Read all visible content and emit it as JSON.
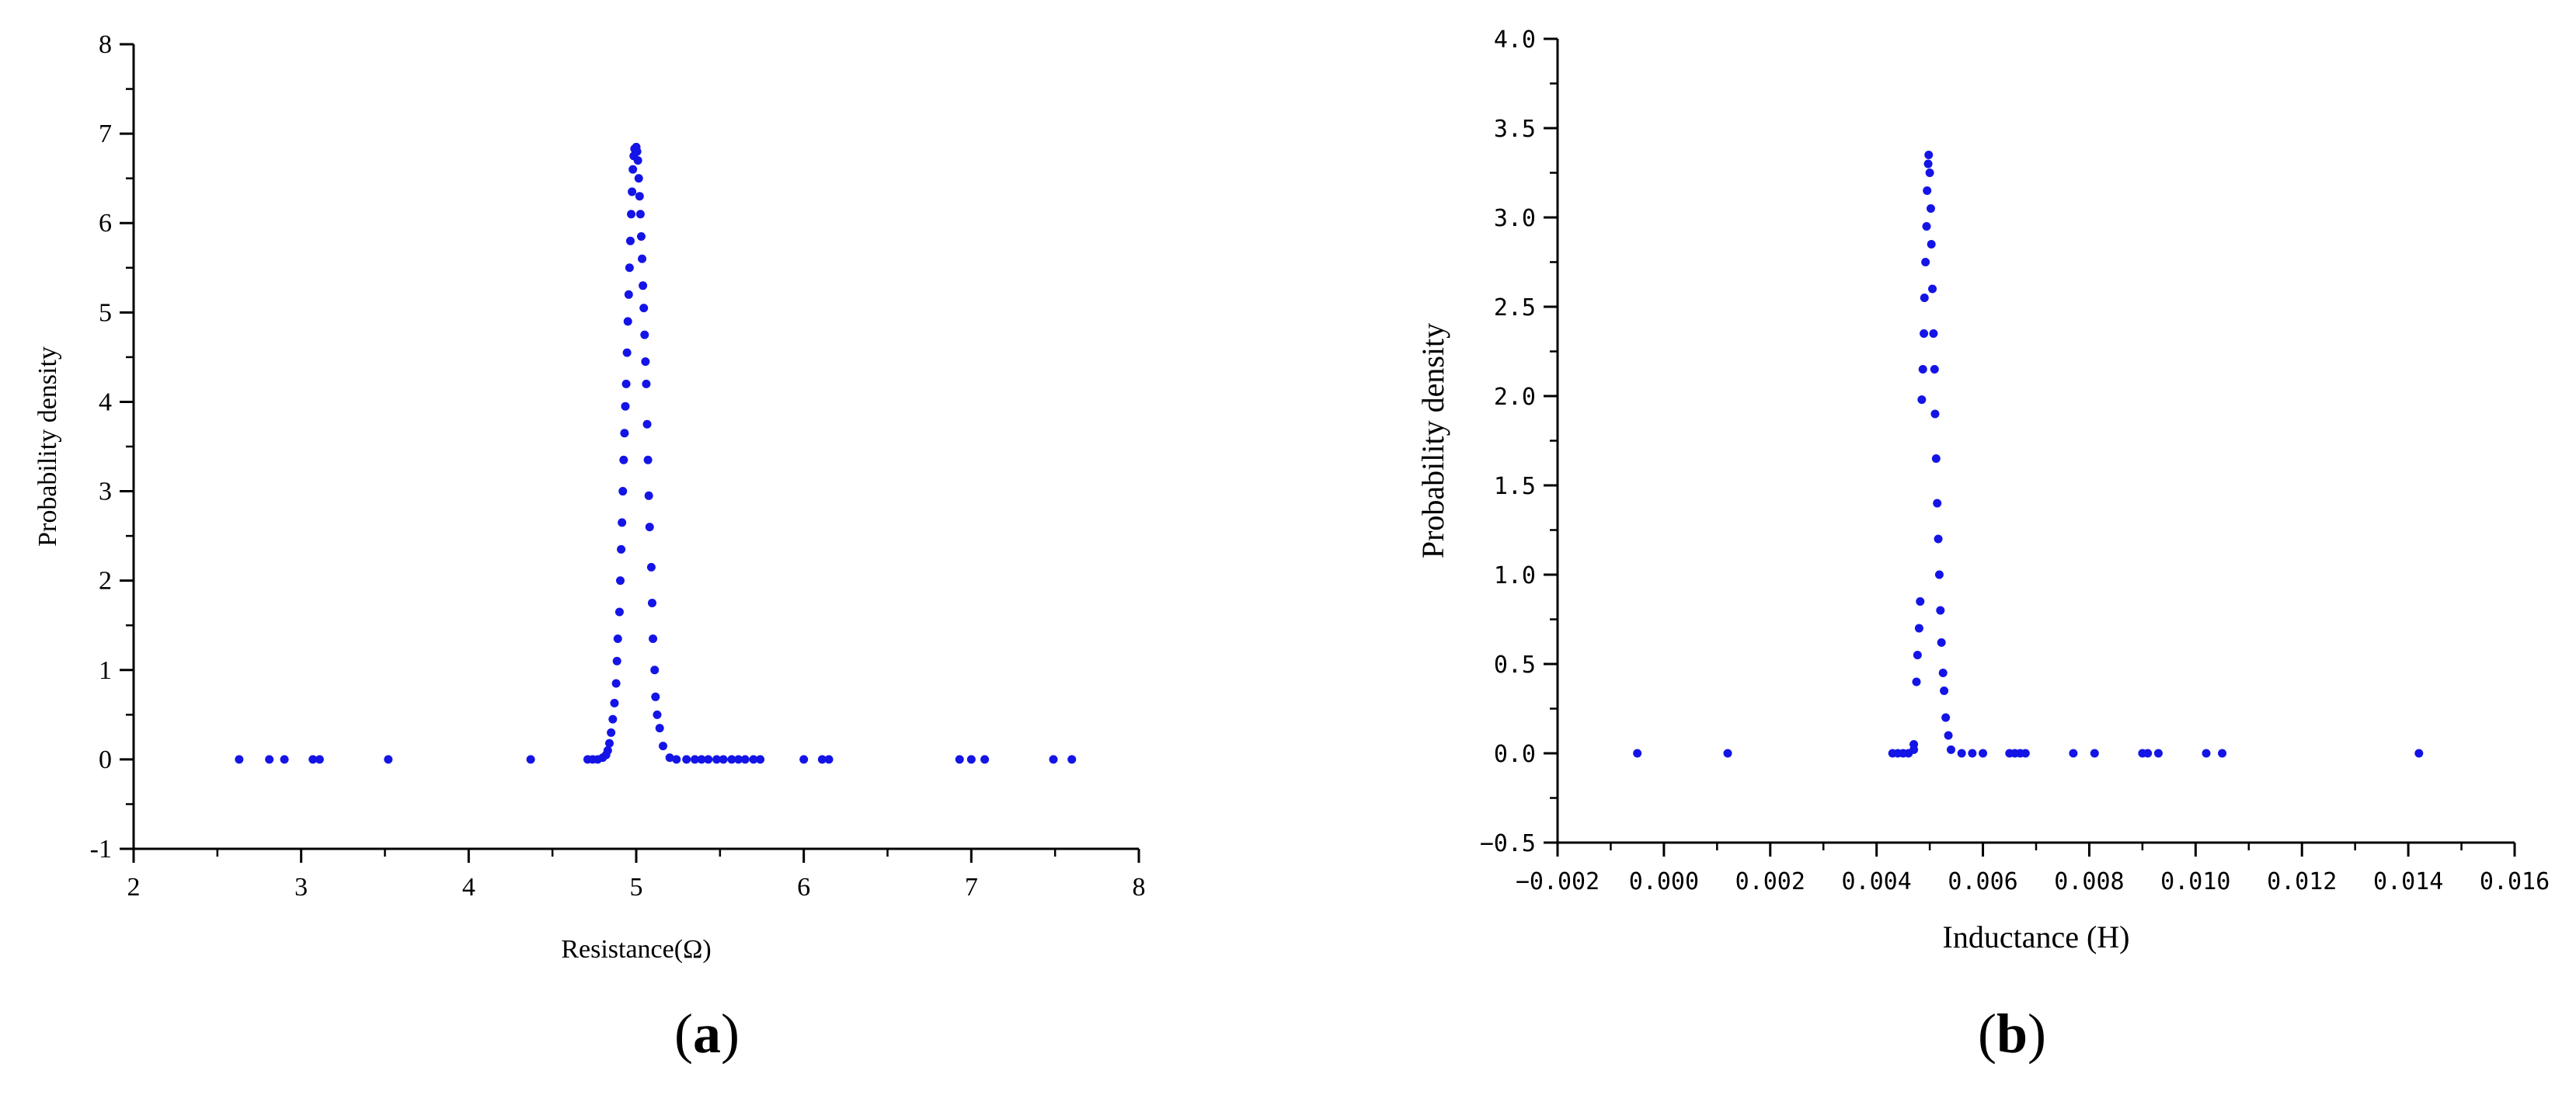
{
  "chart_data": [
    {
      "panel_label": "a",
      "type": "scatter",
      "xlabel": "Resistance(Ω)",
      "ylabel": "Probability density",
      "xlim": [
        2,
        8
      ],
      "ylim": [
        -1,
        8
      ],
      "xticks": [
        "2",
        "3",
        "4",
        "5",
        "6",
        "7",
        "8"
      ],
      "yticks": [
        "-1",
        "0",
        "1",
        "2",
        "3",
        "4",
        "5",
        "6",
        "7",
        "8"
      ],
      "marker_color": "#1414e6",
      "grid": false,
      "points": [
        [
          2.63,
          0
        ],
        [
          2.81,
          0
        ],
        [
          2.9,
          0
        ],
        [
          3.07,
          0
        ],
        [
          3.11,
          0
        ],
        [
          3.52,
          0
        ],
        [
          4.37,
          0
        ],
        [
          4.71,
          0
        ],
        [
          4.74,
          0
        ],
        [
          4.77,
          0
        ],
        [
          4.8,
          0.02
        ],
        [
          4.82,
          0.05
        ],
        [
          4.83,
          0.1
        ],
        [
          4.84,
          0.18
        ],
        [
          4.85,
          0.3
        ],
        [
          4.86,
          0.45
        ],
        [
          4.87,
          0.63
        ],
        [
          4.88,
          0.85
        ],
        [
          4.885,
          1.1
        ],
        [
          4.89,
          1.35
        ],
        [
          4.9,
          1.65
        ],
        [
          4.905,
          2.0
        ],
        [
          4.91,
          2.35
        ],
        [
          4.915,
          2.65
        ],
        [
          4.92,
          3.0
        ],
        [
          4.925,
          3.35
        ],
        [
          4.93,
          3.65
        ],
        [
          4.935,
          3.95
        ],
        [
          4.94,
          4.2
        ],
        [
          4.945,
          4.55
        ],
        [
          4.95,
          4.9
        ],
        [
          4.955,
          5.2
        ],
        [
          4.96,
          5.5
        ],
        [
          4.965,
          5.8
        ],
        [
          4.97,
          6.1
        ],
        [
          4.975,
          6.35
        ],
        [
          4.98,
          6.6
        ],
        [
          4.985,
          6.75
        ],
        [
          4.99,
          6.83
        ],
        [
          5.0,
          6.85
        ],
        [
          5.005,
          6.8
        ],
        [
          5.01,
          6.7
        ],
        [
          5.015,
          6.5
        ],
        [
          5.02,
          6.3
        ],
        [
          5.025,
          6.1
        ],
        [
          5.03,
          5.85
        ],
        [
          5.035,
          5.6
        ],
        [
          5.04,
          5.3
        ],
        [
          5.045,
          5.05
        ],
        [
          5.05,
          4.75
        ],
        [
          5.055,
          4.45
        ],
        [
          5.06,
          4.2
        ],
        [
          5.065,
          3.75
        ],
        [
          5.07,
          3.35
        ],
        [
          5.075,
          2.95
        ],
        [
          5.08,
          2.6
        ],
        [
          5.09,
          2.15
        ],
        [
          5.095,
          1.75
        ],
        [
          5.1,
          1.35
        ],
        [
          5.11,
          1.0
        ],
        [
          5.115,
          0.7
        ],
        [
          5.125,
          0.5
        ],
        [
          5.14,
          0.35
        ],
        [
          5.16,
          0.15
        ],
        [
          5.2,
          0.02
        ],
        [
          5.24,
          0
        ],
        [
          5.3,
          0
        ],
        [
          5.35,
          0
        ],
        [
          5.39,
          0
        ],
        [
          5.43,
          0
        ],
        [
          5.48,
          0
        ],
        [
          5.52,
          0
        ],
        [
          5.57,
          0
        ],
        [
          5.61,
          0
        ],
        [
          5.65,
          0
        ],
        [
          5.7,
          0
        ],
        [
          5.74,
          0
        ],
        [
          6.0,
          0
        ],
        [
          6.11,
          0
        ],
        [
          6.15,
          0
        ],
        [
          6.93,
          0
        ],
        [
          7.0,
          0
        ],
        [
          7.08,
          0
        ],
        [
          7.49,
          0
        ],
        [
          7.6,
          0
        ]
      ]
    },
    {
      "panel_label": "b",
      "type": "scatter",
      "xlabel": "Inductance (H)",
      "ylabel": "Probability density",
      "xlim": [
        -0.002,
        0.016
      ],
      "ylim": [
        -0.5,
        4.0
      ],
      "xticks": [
        "−0.002",
        "0.000",
        "0.002",
        "0.004",
        "0.006",
        "0.008",
        "0.010",
        "0.012",
        "0.014",
        "0.016"
      ],
      "yticks": [
        "−0.5",
        "0.0",
        "0.5",
        "1.0",
        "1.5",
        "2.0",
        "2.5",
        "3.0",
        "3.5",
        "4.0"
      ],
      "marker_color": "#1414e6",
      "grid": false,
      "points": [
        [
          -0.0005,
          0
        ],
        [
          0.0012,
          0
        ],
        [
          0.0043,
          0
        ],
        [
          0.0044,
          0
        ],
        [
          0.0045,
          0
        ],
        [
          0.0046,
          0
        ],
        [
          0.0047,
          0.02
        ],
        [
          0.0047,
          0.05
        ],
        [
          0.00475,
          0.4
        ],
        [
          0.00477,
          0.55
        ],
        [
          0.0048,
          0.7
        ],
        [
          0.00482,
          0.85
        ],
        [
          0.00485,
          1.98
        ],
        [
          0.00487,
          2.15
        ],
        [
          0.00489,
          2.35
        ],
        [
          0.0049,
          2.55
        ],
        [
          0.00492,
          2.75
        ],
        [
          0.00494,
          2.95
        ],
        [
          0.00495,
          3.15
        ],
        [
          0.00497,
          3.3
        ],
        [
          0.00498,
          3.35
        ],
        [
          0.005,
          3.25
        ],
        [
          0.00502,
          3.05
        ],
        [
          0.00503,
          2.85
        ],
        [
          0.00505,
          2.6
        ],
        [
          0.00507,
          2.35
        ],
        [
          0.00509,
          2.15
        ],
        [
          0.0051,
          1.9
        ],
        [
          0.00512,
          1.65
        ],
        [
          0.00514,
          1.4
        ],
        [
          0.00516,
          1.2
        ],
        [
          0.00518,
          1.0
        ],
        [
          0.0052,
          0.8
        ],
        [
          0.00522,
          0.62
        ],
        [
          0.00525,
          0.45
        ],
        [
          0.00527,
          0.35
        ],
        [
          0.0053,
          0.2
        ],
        [
          0.00535,
          0.1
        ],
        [
          0.0054,
          0.02
        ],
        [
          0.0056,
          0
        ],
        [
          0.0058,
          0
        ],
        [
          0.006,
          0
        ],
        [
          0.0065,
          0
        ],
        [
          0.0066,
          0
        ],
        [
          0.0067,
          0
        ],
        [
          0.0068,
          0
        ],
        [
          0.0077,
          0
        ],
        [
          0.0081,
          0
        ],
        [
          0.009,
          0
        ],
        [
          0.0091,
          0
        ],
        [
          0.0093,
          0
        ],
        [
          0.0102,
          0
        ],
        [
          0.0105,
          0
        ],
        [
          0.0142,
          0
        ]
      ]
    }
  ]
}
